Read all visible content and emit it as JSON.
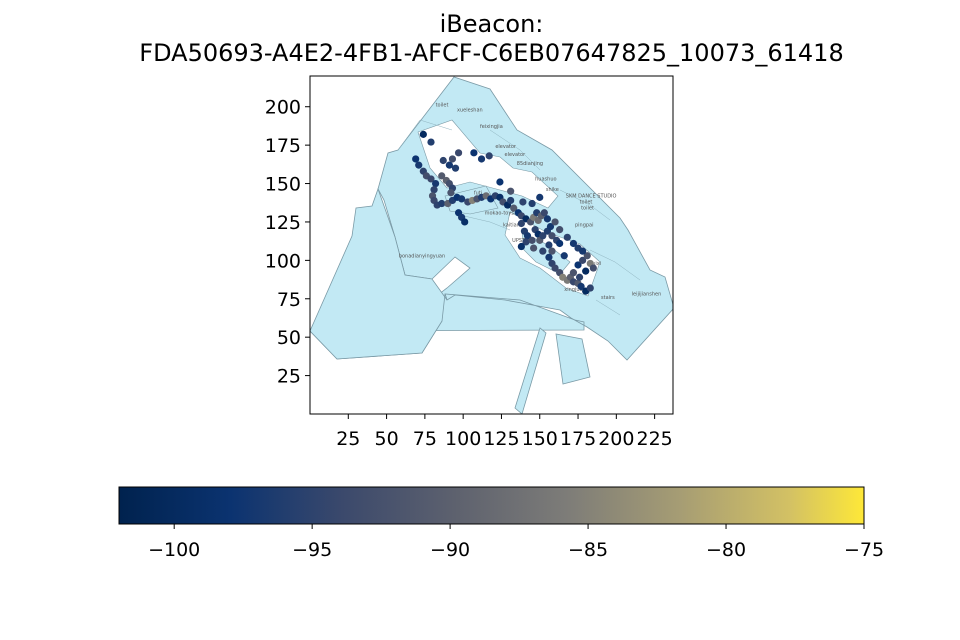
{
  "title_line1": "iBeacon:",
  "title_line2": "FDA50693-A4E2-4FB1-AFCF-C6EB07647825_10073_61418",
  "chart_data": {
    "type": "scatter",
    "xlim": [
      0,
      237
    ],
    "ylim": [
      0,
      220
    ],
    "xticks": [
      25,
      50,
      75,
      100,
      125,
      150,
      175,
      200,
      225
    ],
    "yticks": [
      25,
      50,
      75,
      100,
      125,
      150,
      175,
      200
    ],
    "grid": false,
    "colorbar": {
      "orientation": "horizontal",
      "colormap": "cividis",
      "range": [
        -102,
        -75
      ],
      "ticks": [
        -100,
        -95,
        -90,
        -85,
        -80,
        -75
      ],
      "tick_labels": [
        "−100",
        "−95",
        "−90",
        "−85",
        "−80",
        "−75"
      ]
    },
    "floor_color": "#c2e9f4",
    "floor_edge_color": "#7a9aa6",
    "room_labels": [
      {
        "text": "toilet",
        "x": 82,
        "y": 200
      },
      {
        "text": "xueleshan",
        "x": 96,
        "y": 197
      },
      {
        "text": "feixingjia",
        "x": 111,
        "y": 186
      },
      {
        "text": "elevator",
        "x": 121,
        "y": 173
      },
      {
        "text": "elevator",
        "x": 127,
        "y": 168
      },
      {
        "text": "85dianjing",
        "x": 135,
        "y": 162
      },
      {
        "text": "huashuo",
        "x": 147,
        "y": 152
      },
      {
        "text": "shike",
        "x": 154,
        "y": 145
      },
      {
        "text": "SKM DANCE STUDIO",
        "x": 167,
        "y": 141
      },
      {
        "text": "toilet",
        "x": 176,
        "y": 137
      },
      {
        "text": "toilet",
        "x": 177,
        "y": 133
      },
      {
        "text": "futi",
        "x": 107,
        "y": 143
      },
      {
        "text": "mokao-toys-Co",
        "x": 114,
        "y": 130
      },
      {
        "text": "kaitian",
        "x": 126,
        "y": 122
      },
      {
        "text": "pingpai",
        "x": 173,
        "y": 122
      },
      {
        "text": "UPSTAGE",
        "x": 132,
        "y": 112
      },
      {
        "text": "bonadianyingyuan",
        "x": 58,
        "y": 102
      },
      {
        "text": "tuixi",
        "x": 183,
        "y": 97
      },
      {
        "text": "xingjuan",
        "x": 166,
        "y": 80
      },
      {
        "text": "stairs",
        "x": 190,
        "y": 75
      },
      {
        "text": "leijijianshen",
        "x": 210,
        "y": 77
      }
    ],
    "points": [
      {
        "x": 74,
        "y": 182,
        "rssi": -100
      },
      {
        "x": 79,
        "y": 177,
        "rssi": -96
      },
      {
        "x": 87,
        "y": 165,
        "rssi": -95
      },
      {
        "x": 91,
        "y": 162,
        "rssi": -97
      },
      {
        "x": 95,
        "y": 160,
        "rssi": -96
      },
      {
        "x": 93,
        "y": 166,
        "rssi": -93
      },
      {
        "x": 97,
        "y": 170,
        "rssi": -94
      },
      {
        "x": 69,
        "y": 166,
        "rssi": -98
      },
      {
        "x": 71,
        "y": 162,
        "rssi": -97
      },
      {
        "x": 74,
        "y": 158,
        "rssi": -95
      },
      {
        "x": 76,
        "y": 155,
        "rssi": -93
      },
      {
        "x": 79,
        "y": 153,
        "rssi": -94
      },
      {
        "x": 82,
        "y": 150,
        "rssi": -97
      },
      {
        "x": 81,
        "y": 146,
        "rssi": -95
      },
      {
        "x": 80,
        "y": 142,
        "rssi": -92
      },
      {
        "x": 81,
        "y": 139,
        "rssi": -94
      },
      {
        "x": 83,
        "y": 136,
        "rssi": -95
      },
      {
        "x": 86,
        "y": 155,
        "rssi": -91
      },
      {
        "x": 89,
        "y": 152,
        "rssi": -90
      },
      {
        "x": 91,
        "y": 150,
        "rssi": -93
      },
      {
        "x": 93,
        "y": 147,
        "rssi": -95
      },
      {
        "x": 86,
        "y": 137,
        "rssi": -96
      },
      {
        "x": 90,
        "y": 137,
        "rssi": -90
      },
      {
        "x": 93,
        "y": 139,
        "rssi": -96
      },
      {
        "x": 96,
        "y": 141,
        "rssi": -98
      },
      {
        "x": 99,
        "y": 140,
        "rssi": -97
      },
      {
        "x": 97,
        "y": 131,
        "rssi": -98
      },
      {
        "x": 99,
        "y": 128,
        "rssi": -97
      },
      {
        "x": 101,
        "y": 125,
        "rssi": -99
      },
      {
        "x": 103,
        "y": 138,
        "rssi": -94
      },
      {
        "x": 106,
        "y": 139,
        "rssi": -85
      },
      {
        "x": 109,
        "y": 140,
        "rssi": -92
      },
      {
        "x": 112,
        "y": 141,
        "rssi": -96
      },
      {
        "x": 115,
        "y": 142,
        "rssi": -88
      },
      {
        "x": 118,
        "y": 140,
        "rssi": -98
      },
      {
        "x": 121,
        "y": 142,
        "rssi": -95
      },
      {
        "x": 124,
        "y": 141,
        "rssi": -99
      },
      {
        "x": 126,
        "y": 138,
        "rssi": -93
      },
      {
        "x": 129,
        "y": 136,
        "rssi": -100
      },
      {
        "x": 131,
        "y": 139,
        "rssi": -96
      },
      {
        "x": 133,
        "y": 134,
        "rssi": -91
      },
      {
        "x": 136,
        "y": 131,
        "rssi": -98
      },
      {
        "x": 138,
        "y": 129,
        "rssi": -94
      },
      {
        "x": 141,
        "y": 127,
        "rssi": -100
      },
      {
        "x": 138,
        "y": 124,
        "rssi": -95
      },
      {
        "x": 140,
        "y": 119,
        "rssi": -96
      },
      {
        "x": 142,
        "y": 116,
        "rssi": -97
      },
      {
        "x": 141,
        "y": 112,
        "rssi": -95
      },
      {
        "x": 138,
        "y": 109,
        "rssi": -99
      },
      {
        "x": 144,
        "y": 125,
        "rssi": -92
      },
      {
        "x": 146,
        "y": 128,
        "rssi": -86
      },
      {
        "x": 148,
        "y": 131,
        "rssi": -96
      },
      {
        "x": 149,
        "y": 126,
        "rssi": -88
      },
      {
        "x": 151,
        "y": 129,
        "rssi": -90
      },
      {
        "x": 153,
        "y": 131,
        "rssi": -94
      },
      {
        "x": 155,
        "y": 127,
        "rssi": -97
      },
      {
        "x": 147,
        "y": 120,
        "rssi": -95
      },
      {
        "x": 149,
        "y": 117,
        "rssi": -99
      },
      {
        "x": 145,
        "y": 113,
        "rssi": -93
      },
      {
        "x": 150,
        "y": 113,
        "rssi": -91
      },
      {
        "x": 152,
        "y": 116,
        "rssi": -95
      },
      {
        "x": 155,
        "y": 119,
        "rssi": -96
      },
      {
        "x": 157,
        "y": 122,
        "rssi": -97
      },
      {
        "x": 158,
        "y": 116,
        "rssi": -93
      },
      {
        "x": 161,
        "y": 113,
        "rssi": -95
      },
      {
        "x": 163,
        "y": 111,
        "rssi": -98
      },
      {
        "x": 156,
        "y": 110,
        "rssi": -96
      },
      {
        "x": 158,
        "y": 106,
        "rssi": -92
      },
      {
        "x": 156,
        "y": 102,
        "rssi": -97
      },
      {
        "x": 158,
        "y": 98,
        "rssi": -95
      },
      {
        "x": 160,
        "y": 95,
        "rssi": -94
      },
      {
        "x": 163,
        "y": 92,
        "rssi": -93
      },
      {
        "x": 165,
        "y": 89,
        "rssi": -85
      },
      {
        "x": 168,
        "y": 87,
        "rssi": -86
      },
      {
        "x": 170,
        "y": 89,
        "rssi": -90
      },
      {
        "x": 172,
        "y": 86,
        "rssi": -94
      },
      {
        "x": 175,
        "y": 85,
        "rssi": -91
      },
      {
        "x": 177,
        "y": 83,
        "rssi": -97
      },
      {
        "x": 180,
        "y": 80,
        "rssi": -100
      },
      {
        "x": 183,
        "y": 82,
        "rssi": -95
      },
      {
        "x": 176,
        "y": 89,
        "rssi": -95
      },
      {
        "x": 172,
        "y": 92,
        "rssi": -92
      },
      {
        "x": 175,
        "y": 97,
        "rssi": -98
      },
      {
        "x": 178,
        "y": 100,
        "rssi": -94
      },
      {
        "x": 181,
        "y": 103,
        "rssi": -92
      },
      {
        "x": 183,
        "y": 98,
        "rssi": -86
      },
      {
        "x": 185,
        "y": 95,
        "rssi": -93
      },
      {
        "x": 180,
        "y": 93,
        "rssi": -100
      },
      {
        "x": 168,
        "y": 115,
        "rssi": -95
      },
      {
        "x": 172,
        "y": 111,
        "rssi": -97
      },
      {
        "x": 175,
        "y": 108,
        "rssi": -96
      },
      {
        "x": 178,
        "y": 106,
        "rssi": -97
      },
      {
        "x": 160,
        "y": 125,
        "rssi": -92
      },
      {
        "x": 146,
        "y": 108,
        "rssi": -92
      },
      {
        "x": 112,
        "y": 166,
        "rssi": -97
      },
      {
        "x": 107,
        "y": 170,
        "rssi": -98
      },
      {
        "x": 117,
        "y": 168,
        "rssi": -95
      },
      {
        "x": 124,
        "y": 151,
        "rssi": -98
      },
      {
        "x": 131,
        "y": 145,
        "rssi": -92
      },
      {
        "x": 139,
        "y": 138,
        "rssi": -95
      },
      {
        "x": 145,
        "y": 137,
        "rssi": -96
      },
      {
        "x": 150,
        "y": 141,
        "rssi": -97
      },
      {
        "x": 163,
        "y": 120,
        "rssi": -93
      },
      {
        "x": 152,
        "y": 106,
        "rssi": -95
      },
      {
        "x": 166,
        "y": 103,
        "rssi": -97
      },
      {
        "x": 92,
        "y": 144,
        "rssi": -92
      }
    ]
  }
}
